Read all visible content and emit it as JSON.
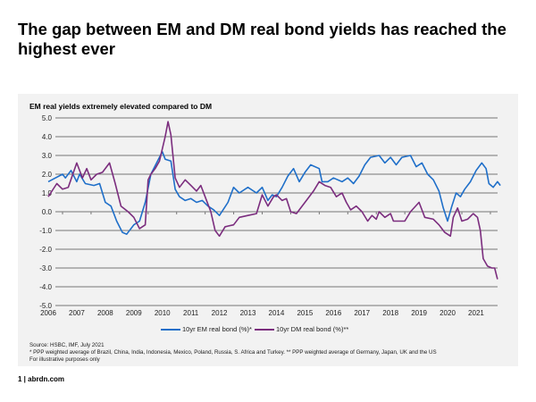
{
  "title": "The gap between EM and DM real bond yields has reached the highest ever",
  "footer": {
    "source": "Source: HSBC, IMF, July 2021",
    "note1": "* PPP weighted  average  of Brazil, China, India,  Indonesia,  Mexico, Poland, Russia, S. Africa and Turkey. ** PPP weighted average  of Germany, Japan, UK and the US",
    "note2": "For illustrative purposes only",
    "page": "1 | abrdn.com"
  },
  "chart_data": {
    "type": "line",
    "title": "EM real yields extremely elevated compared to DM",
    "xlabel": "",
    "ylabel": "",
    "xlim": [
      2006,
      2021.75
    ],
    "ylim": [
      -5,
      5
    ],
    "x_ticks": [
      "2006",
      "2007",
      "2008",
      "2009",
      "2010",
      "2011",
      "2012",
      "2013",
      "2014",
      "2015",
      "2016",
      "2017",
      "2018",
      "2019",
      "2020",
      "2021"
    ],
    "y_ticks": [
      "5.0",
      "4.0",
      "3.0",
      "2.0",
      "1.0",
      "0.0",
      "-1.0",
      "-2.0",
      "-3.0",
      "-4.0",
      "-5.0"
    ],
    "grid": "horizontal",
    "legend": "bottom",
    "series": [
      {
        "name": "10yr EM real bond (%)*",
        "color": "#1f6fc9",
        "x": [
          2006.0,
          2006.25,
          2006.5,
          2006.6,
          2006.8,
          2007.0,
          2007.1,
          2007.3,
          2007.6,
          2007.8,
          2008.0,
          2008.2,
          2008.4,
          2008.6,
          2008.75,
          2009.0,
          2009.2,
          2009.4,
          2009.6,
          2009.8,
          2010.0,
          2010.1,
          2010.3,
          2010.45,
          2010.6,
          2010.8,
          2011.0,
          2011.2,
          2011.4,
          2011.6,
          2011.8,
          2012.0,
          2012.3,
          2012.5,
          2012.7,
          2013.0,
          2013.3,
          2013.5,
          2013.7,
          2013.85,
          2014.0,
          2014.2,
          2014.4,
          2014.6,
          2014.8,
          2015.0,
          2015.2,
          2015.5,
          2015.6,
          2015.8,
          2016.0,
          2016.3,
          2016.5,
          2016.7,
          2016.9,
          2017.1,
          2017.3,
          2017.6,
          2017.8,
          2018.0,
          2018.2,
          2018.4,
          2018.7,
          2018.9,
          2019.1,
          2019.3,
          2019.5,
          2019.7,
          2019.85,
          2020.0,
          2020.15,
          2020.3,
          2020.45,
          2020.6,
          2020.8,
          2021.0,
          2021.2,
          2021.35,
          2021.45,
          2021.6,
          2021.75,
          2021.85
        ],
        "y": [
          1.6,
          1.8,
          2.0,
          1.8,
          2.2,
          1.6,
          2.0,
          1.5,
          1.4,
          1.5,
          0.5,
          0.3,
          -0.5,
          -1.1,
          -1.2,
          -0.7,
          -0.5,
          0.5,
          2.0,
          2.6,
          3.2,
          2.8,
          2.7,
          1.2,
          0.8,
          0.6,
          0.7,
          0.5,
          0.6,
          0.3,
          0.1,
          -0.2,
          0.5,
          1.3,
          1.0,
          1.3,
          1.0,
          1.3,
          0.6,
          0.9,
          0.8,
          1.3,
          1.9,
          2.3,
          1.6,
          2.1,
          2.5,
          2.3,
          1.6,
          1.6,
          1.8,
          1.6,
          1.8,
          1.5,
          1.9,
          2.5,
          2.9,
          3.0,
          2.6,
          2.9,
          2.5,
          2.9,
          3.0,
          2.4,
          2.6,
          2.0,
          1.7,
          1.1,
          0.2,
          -0.5,
          0.3,
          1.0,
          0.8,
          1.2,
          1.6,
          2.2,
          2.6,
          2.3,
          1.5,
          1.3,
          1.6,
          1.4
        ]
      },
      {
        "name": "10yr DM real bond (%)**",
        "color": "#7b2d7e",
        "x": [
          2006.0,
          2006.3,
          2006.5,
          2006.7,
          2007.0,
          2007.2,
          2007.35,
          2007.5,
          2007.7,
          2007.9,
          2008.15,
          2008.35,
          2008.55,
          2008.8,
          2009.0,
          2009.2,
          2009.4,
          2009.5,
          2009.6,
          2009.75,
          2009.9,
          2010.1,
          2010.2,
          2010.3,
          2010.45,
          2010.6,
          2010.8,
          2011.0,
          2011.2,
          2011.35,
          2011.5,
          2011.7,
          2011.85,
          2012.0,
          2012.2,
          2012.5,
          2012.7,
          2013.0,
          2013.3,
          2013.5,
          2013.7,
          2013.9,
          2014.0,
          2014.2,
          2014.35,
          2014.5,
          2014.7,
          2015.0,
          2015.3,
          2015.5,
          2015.7,
          2015.9,
          2016.1,
          2016.3,
          2016.45,
          2016.6,
          2016.8,
          2017.0,
          2017.2,
          2017.35,
          2017.5,
          2017.6,
          2017.8,
          2018.0,
          2018.1,
          2018.5,
          2018.7,
          2019.0,
          2019.2,
          2019.5,
          2019.7,
          2019.9,
          2020.1,
          2020.2,
          2020.35,
          2020.5,
          2020.7,
          2020.9,
          2021.05,
          2021.15,
          2021.25,
          2021.4,
          2021.55,
          2021.65,
          2021.75
        ],
        "y": [
          0.8,
          1.5,
          1.2,
          1.3,
          2.6,
          1.8,
          2.3,
          1.7,
          2.0,
          2.1,
          2.6,
          1.5,
          0.3,
          0.0,
          -0.3,
          -0.9,
          -0.7,
          1.7,
          2.0,
          2.3,
          2.7,
          4.0,
          4.8,
          4.1,
          1.8,
          1.3,
          1.7,
          1.4,
          1.1,
          1.4,
          0.8,
          0.0,
          -1.0,
          -1.3,
          -0.8,
          -0.7,
          -0.3,
          -0.2,
          -0.1,
          0.9,
          0.3,
          0.8,
          0.9,
          0.6,
          0.7,
          0.0,
          -0.1,
          0.5,
          1.1,
          1.6,
          1.4,
          1.3,
          0.8,
          1.0,
          0.5,
          0.1,
          0.3,
          0.0,
          -0.5,
          -0.2,
          -0.4,
          0.0,
          -0.3,
          -0.1,
          -0.5,
          -0.5,
          0.0,
          0.5,
          -0.3,
          -0.4,
          -0.7,
          -1.1,
          -1.3,
          -0.3,
          0.2,
          -0.5,
          -0.4,
          -0.1,
          -0.3,
          -1.0,
          -2.5,
          -2.9,
          -3.0,
          -3.0,
          -3.6
        ]
      }
    ]
  }
}
